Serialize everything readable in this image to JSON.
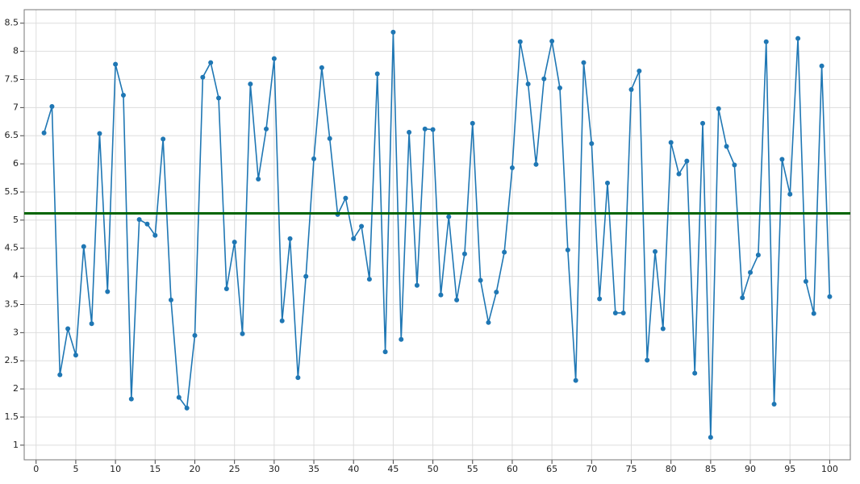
{
  "chart_data": {
    "type": "line",
    "x": [
      1,
      2,
      3,
      4,
      5,
      6,
      7,
      8,
      9,
      10,
      11,
      12,
      13,
      14,
      15,
      16,
      17,
      18,
      19,
      20,
      21,
      22,
      23,
      24,
      25,
      26,
      27,
      28,
      29,
      30,
      31,
      32,
      33,
      34,
      35,
      36,
      37,
      38,
      39,
      40,
      41,
      42,
      43,
      44,
      45,
      46,
      47,
      48,
      49,
      50,
      51,
      52,
      53,
      54,
      55,
      56,
      57,
      58,
      59,
      60,
      61,
      62,
      63,
      64,
      65,
      66,
      67,
      68,
      69,
      70,
      71,
      72,
      73,
      74,
      75,
      76,
      77,
      78,
      79,
      80,
      81,
      82,
      83,
      84,
      85,
      86,
      87,
      88,
      89,
      90,
      91,
      92,
      93,
      94,
      95,
      96,
      97,
      98,
      99,
      100
    ],
    "series": [
      {
        "color": "#1f77b4",
        "values": [
          6.55,
          7.02,
          2.25,
          3.07,
          2.6,
          4.53,
          3.16,
          6.54,
          3.73,
          7.77,
          7.22,
          1.82,
          5.01,
          4.93,
          4.73,
          6.44,
          3.58,
          1.85,
          1.66,
          2.95,
          7.54,
          7.8,
          7.17,
          3.78,
          4.61,
          2.98,
          7.42,
          5.73,
          6.62,
          7.87,
          3.21,
          4.67,
          2.2,
          4.0,
          6.09,
          7.71,
          6.45,
          5.1,
          5.39,
          4.67,
          4.89,
          3.95,
          7.6,
          2.66,
          8.34,
          2.88,
          6.56,
          3.84,
          6.62,
          6.61,
          3.67,
          5.06,
          3.58,
          4.4,
          6.72,
          3.93,
          3.18,
          3.72,
          4.43,
          5.93,
          8.17,
          7.42,
          5.99,
          7.51,
          8.18,
          7.35,
          4.47,
          2.15,
          7.8,
          6.36,
          3.6,
          5.66,
          3.35,
          3.35,
          7.32,
          7.65,
          2.51,
          4.44,
          3.07,
          6.38,
          5.82,
          6.05,
          2.28,
          6.72,
          1.14,
          6.98,
          6.31,
          5.98,
          3.62,
          4.07,
          4.38,
          8.17,
          1.73,
          6.08,
          5.46,
          8.23,
          3.91,
          3.34,
          7.74,
          3.64
        ]
      }
    ],
    "reference_line": {
      "value": 5.12,
      "color": "#006400"
    },
    "xlim": [
      -1.5,
      102.6
    ],
    "ylim": [
      0.74,
      8.74
    ],
    "xticks": [
      0,
      5,
      10,
      15,
      20,
      25,
      30,
      35,
      40,
      45,
      50,
      55,
      60,
      65,
      70,
      75,
      80,
      85,
      90,
      95,
      100
    ],
    "yticks": [
      1,
      1.5,
      2,
      2.5,
      3,
      3.5,
      4,
      4.5,
      5,
      5.5,
      6,
      6.5,
      7,
      7.5,
      8,
      8.5
    ],
    "grid": true
  }
}
